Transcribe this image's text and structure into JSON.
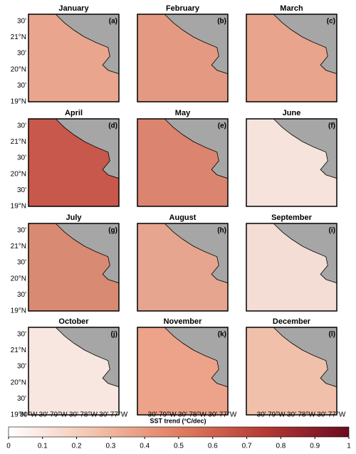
{
  "panels": [
    {
      "title": "January",
      "label": "(a)",
      "fill": "#e9a58d"
    },
    {
      "title": "February",
      "label": "(b)",
      "fill": "#e49a82"
    },
    {
      "title": "March",
      "label": "(c)",
      "fill": "#e8a48c"
    },
    {
      "title": "April",
      "label": "(d)",
      "fill": "#c8584b"
    },
    {
      "title": "May",
      "label": "(e)",
      "fill": "#db8470"
    },
    {
      "title": "June",
      "label": "(f)",
      "fill": "#f6e3db"
    },
    {
      "title": "July",
      "label": "(g)",
      "fill": "#d98a72"
    },
    {
      "title": "August",
      "label": "(h)",
      "fill": "#e6a58e"
    },
    {
      "title": "September",
      "label": "(i)",
      "fill": "#f4ddd4"
    },
    {
      "title": "October",
      "label": "(j)",
      "fill": "#f7e7e0"
    },
    {
      "title": "November",
      "label": "(k)",
      "fill": "#eca389"
    },
    {
      "title": "December",
      "label": "(l)",
      "fill": "#f0c0aa"
    }
  ],
  "lat_labels": [
    "30'",
    "21°N",
    "30'",
    "20°N",
    "30'",
    "19°N"
  ],
  "lon_labels": [
    "80°W",
    "30'",
    "79°W",
    "30'",
    "78°W",
    "30'",
    "77°W"
  ],
  "land_color": "#a6a6a6",
  "colorbar": {
    "label": "SST trend (°C/dec)",
    "lim": [
      0,
      1
    ],
    "ticks": [
      0,
      0.1,
      0.2,
      0.3,
      0.4,
      0.5,
      0.6,
      0.7,
      0.8,
      0.9,
      1
    ],
    "colors": [
      "#ffffff",
      "#f4c3ad",
      "#e07e60",
      "#b63a34",
      "#6b0b22"
    ]
  }
}
